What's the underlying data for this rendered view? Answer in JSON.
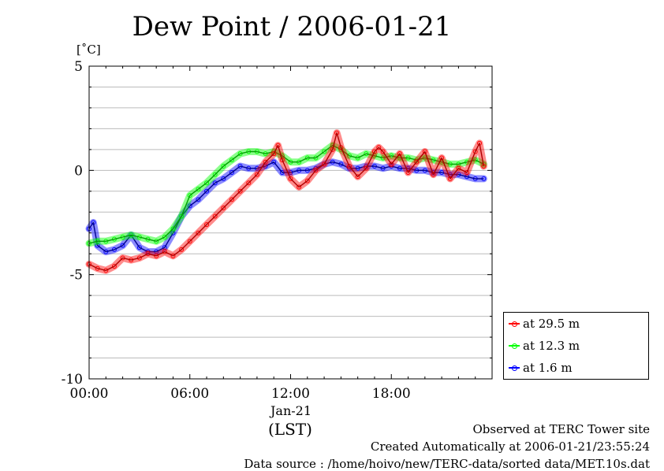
{
  "page": {
    "title": "Dew Point / 2006-01-21",
    "unit_label": "[˚C]",
    "date_label": "Jan-21",
    "time_zone_label": "(LST)",
    "footer": {
      "line1": "Observed at TERC Tower site",
      "line2": "Created Automatically at 2006-01-21/23:55:24",
      "line3": "Data source : /home/hoivo/new/TERC-data/sorted  data/MET.10s.dat"
    }
  },
  "chart_data": {
    "type": "line",
    "title": "Dew Point / 2006-01-21",
    "xlabel": "(LST)",
    "ylabel": "[˚C]",
    "xlim": [
      0,
      24
    ],
    "ylim": [
      -10,
      5
    ],
    "x_ticks": [
      {
        "value": 0,
        "label": "00:00"
      },
      {
        "value": 6,
        "label": "06:00"
      },
      {
        "value": 12,
        "label": "12:00"
      },
      {
        "value": 18,
        "label": "18:00"
      }
    ],
    "y_ticks": [
      {
        "value": 5,
        "label": "5"
      },
      {
        "value": 0,
        "label": "0"
      },
      {
        "value": -5,
        "label": "-5"
      },
      {
        "value": -10,
        "label": "-10"
      }
    ],
    "grid": true,
    "legend_position": "right-bottom",
    "series": [
      {
        "name": "at 29.5 m",
        "color": "#ff0000",
        "x": [
          0,
          0.5,
          1,
          1.5,
          2,
          2.5,
          3,
          3.5,
          4,
          4.5,
          5,
          5.5,
          6,
          6.5,
          7,
          7.5,
          8,
          8.5,
          9,
          9.5,
          10,
          10.5,
          11,
          11.25,
          11.5,
          12,
          12.5,
          13,
          13.5,
          14,
          14.5,
          14.75,
          15,
          15.5,
          16,
          16.5,
          17,
          17.25,
          17.5,
          18,
          18.5,
          19,
          19.5,
          20,
          20.5,
          21,
          21.5,
          22,
          22.5,
          23,
          23.25,
          23.5
        ],
        "y": [
          -4.5,
          -4.7,
          -4.8,
          -4.6,
          -4.2,
          -4.3,
          -4.2,
          -4.0,
          -4.1,
          -3.9,
          -4.1,
          -3.8,
          -3.4,
          -3.0,
          -2.6,
          -2.2,
          -1.8,
          -1.4,
          -1.0,
          -0.6,
          -0.2,
          0.4,
          0.8,
          1.2,
          0.5,
          -0.4,
          -0.8,
          -0.5,
          0.0,
          0.3,
          1.0,
          1.8,
          1.1,
          0.2,
          -0.3,
          0.1,
          0.9,
          1.1,
          0.9,
          0.3,
          0.8,
          -0.1,
          0.4,
          0.9,
          -0.2,
          0.6,
          -0.4,
          0.1,
          -0.1,
          0.9,
          1.3,
          0.2
        ]
      },
      {
        "name": "at 12.3 m",
        "color": "#00ff00",
        "x": [
          0,
          0.5,
          1,
          1.5,
          2,
          2.5,
          3,
          3.5,
          4,
          4.5,
          5,
          5.5,
          6,
          6.5,
          7,
          7.5,
          8,
          8.5,
          9,
          9.5,
          10,
          10.5,
          11,
          11.5,
          12,
          12.5,
          13,
          13.5,
          14,
          14.5,
          15,
          15.5,
          16,
          16.5,
          17,
          17.5,
          18,
          18.5,
          19,
          19.5,
          20,
          20.5,
          21,
          21.5,
          22,
          22.5,
          23,
          23.5
        ],
        "y": [
          -3.5,
          -3.4,
          -3.4,
          -3.3,
          -3.2,
          -3.1,
          -3.2,
          -3.3,
          -3.4,
          -3.2,
          -2.8,
          -2.2,
          -1.2,
          -0.9,
          -0.6,
          -0.2,
          0.2,
          0.5,
          0.8,
          0.9,
          0.9,
          0.8,
          0.9,
          0.7,
          0.4,
          0.4,
          0.6,
          0.6,
          0.9,
          1.2,
          1.0,
          0.7,
          0.6,
          0.8,
          0.7,
          0.6,
          0.7,
          0.6,
          0.6,
          0.5,
          0.6,
          0.5,
          0.4,
          0.3,
          0.3,
          0.4,
          0.5,
          0.3
        ]
      },
      {
        "name": "at 1.6 m",
        "color": "#0000ff",
        "x": [
          0,
          0.25,
          0.5,
          1,
          1.5,
          2,
          2.5,
          3,
          3.5,
          4,
          4.5,
          5,
          5.5,
          6,
          6.5,
          7,
          7.5,
          8,
          8.5,
          9,
          9.5,
          10,
          10.5,
          11,
          11.5,
          12,
          12.5,
          13,
          13.5,
          14,
          14.5,
          15,
          15.5,
          16,
          16.5,
          17,
          17.5,
          18,
          18.5,
          19,
          19.5,
          20,
          20.5,
          21,
          21.5,
          22,
          22.5,
          23,
          23.5
        ],
        "y": [
          -2.8,
          -2.5,
          -3.6,
          -3.9,
          -3.8,
          -3.6,
          -3.1,
          -3.7,
          -3.9,
          -3.9,
          -3.7,
          -3.0,
          -2.2,
          -1.7,
          -1.4,
          -1.0,
          -0.6,
          -0.4,
          -0.1,
          0.2,
          0.1,
          0.1,
          0.2,
          0.4,
          -0.1,
          -0.1,
          0.0,
          0.0,
          0.1,
          0.3,
          0.4,
          0.3,
          0.1,
          0.1,
          0.2,
          0.2,
          0.1,
          0.2,
          0.1,
          0.1,
          0.0,
          0.0,
          -0.1,
          -0.1,
          -0.2,
          -0.2,
          -0.3,
          -0.4,
          -0.4
        ]
      }
    ]
  }
}
